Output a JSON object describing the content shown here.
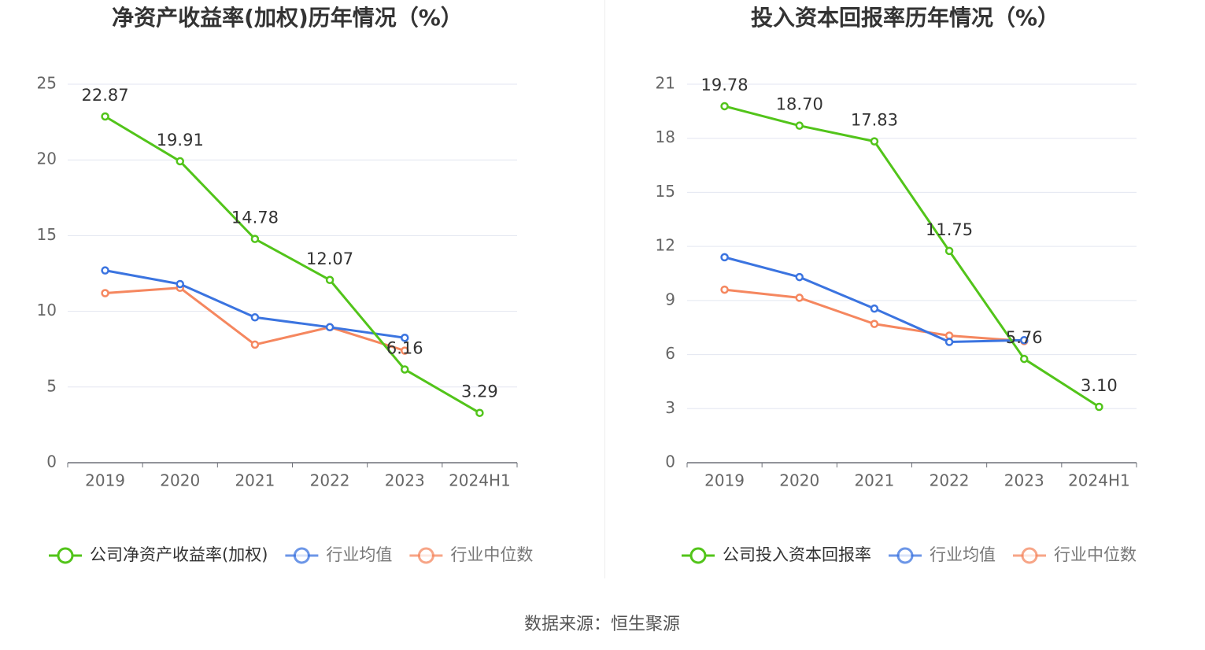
{
  "source_label": "数据来源：恒生聚源",
  "chart_data": [
    {
      "type": "line",
      "title": "净资产收益率(加权)历年情况（%）",
      "categories": [
        "2019",
        "2020",
        "2021",
        "2022",
        "2023",
        "2024H1"
      ],
      "ylim": [
        0,
        25
      ],
      "yticks": [
        0,
        5,
        10,
        15,
        20,
        25
      ],
      "grid": true,
      "legend_position": "bottom",
      "series": [
        {
          "name": "公司净资产收益率(加权)",
          "color": "#52c41a",
          "labels": true,
          "values": [
            22.87,
            19.91,
            14.78,
            12.07,
            6.16,
            3.29
          ],
          "value_labels": [
            "22.87",
            "19.91",
            "14.78",
            "12.07",
            "6.16",
            "3.29"
          ]
        },
        {
          "name": "行业均值",
          "color": "#3b74e0",
          "labels": false,
          "values": [
            12.7,
            11.8,
            9.6,
            8.95,
            8.25,
            null
          ]
        },
        {
          "name": "行业中位数",
          "color": "#f5875f",
          "labels": false,
          "values": [
            11.2,
            11.55,
            7.8,
            8.95,
            7.4,
            null
          ]
        }
      ]
    },
    {
      "type": "line",
      "title": "投入资本回报率历年情况（%）",
      "categories": [
        "2019",
        "2020",
        "2021",
        "2022",
        "2023",
        "2024H1"
      ],
      "ylim": [
        0,
        21
      ],
      "yticks": [
        0,
        3,
        6,
        9,
        12,
        15,
        18,
        21
      ],
      "grid": true,
      "legend_position": "bottom",
      "series": [
        {
          "name": "公司投入资本回报率",
          "color": "#52c41a",
          "labels": true,
          "values": [
            19.78,
            18.7,
            17.83,
            11.75,
            5.76,
            3.1
          ],
          "value_labels": [
            "19.78",
            "18.70",
            "17.83",
            "11.75",
            "5.76",
            "3.10"
          ]
        },
        {
          "name": "行业均值",
          "color": "#3b74e0",
          "labels": false,
          "values": [
            11.4,
            10.3,
            8.55,
            6.7,
            6.8,
            null
          ]
        },
        {
          "name": "行业中位数",
          "color": "#f5875f",
          "labels": false,
          "values": [
            9.6,
            9.15,
            7.7,
            7.05,
            6.75,
            null
          ]
        }
      ]
    }
  ]
}
